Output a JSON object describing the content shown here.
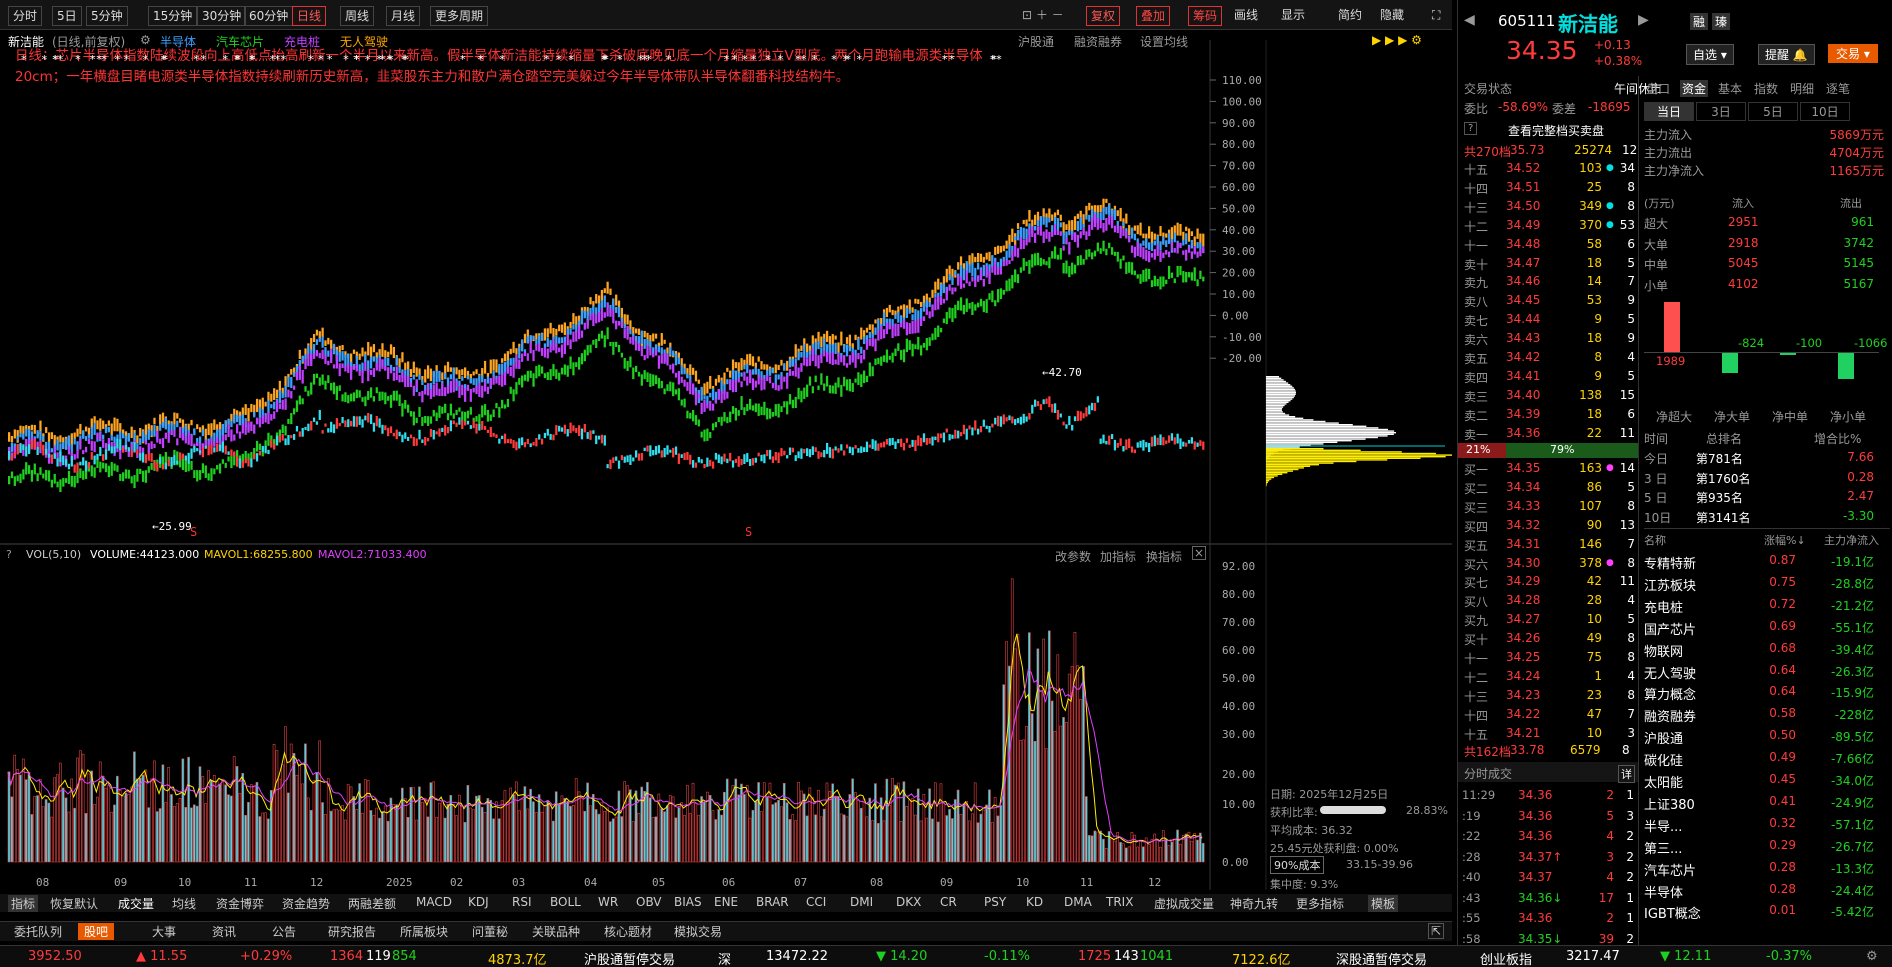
{
  "toolbar": {
    "items": [
      "分时",
      "5日",
      "5分钟",
      "15分钟",
      "30分钟",
      "60分钟",
      "日线",
      "周线",
      "月线",
      "更多周期"
    ],
    "active": "日线",
    "right": [
      "复权",
      "叠加",
      "筹码",
      "画线",
      "显示",
      "简约",
      "隐藏"
    ]
  },
  "overlay": {
    "name": "新洁能",
    "info": "(日线,前复权)",
    "items": [
      "半导体",
      "汽车芯片",
      "充电桩",
      "无人驾驶"
    ],
    "right": [
      "沪股通",
      "融资融券",
      "设置均线"
    ]
  },
  "annotation": "日线：芯片半导体指数陆续波段向上高低点抬高刷新一个半月以来新高。假半导体新洁能持续缩量下杀破底晚见底一个月缩量独立V型底。两个月跑输电源类半导体20cm；一年横盘目睹电源类半导体指数持续刷新历史新高，韭菜股东主力和散户满仓踏空完美躲过今年半导体带队半导体翻番科技结构牛。",
  "price_axis": [
    "110.00",
    "100.00",
    "90.00",
    "80.00",
    "70.00",
    "60.00",
    "50.00",
    "40.00",
    "30.00",
    "20.00",
    "10.00",
    "0.00",
    "-10.00",
    "-20.00"
  ],
  "price_labels": {
    "high": "42.70",
    "low": "25.99"
  },
  "vol_header": {
    "name": "VOL(5,10)",
    "volume": "VOLUME:44123.000",
    "mavol1": "MAVOL1:68255.800",
    "mavol2": "MAVOL2:71033.400",
    "right": [
      "改参数",
      "加指标",
      "换指标"
    ]
  },
  "vol_axis": [
    "92.00",
    "80.00",
    "70.00",
    "60.00",
    "50.00",
    "40.00",
    "30.00",
    "20.00",
    "10.00",
    "0.00"
  ],
  "x_axis": [
    "08",
    "09",
    "10",
    "11",
    "12",
    "2025",
    "02",
    "03",
    "04",
    "05",
    "06",
    "07",
    "08",
    "09",
    "10",
    "11",
    "12"
  ],
  "chip": {
    "date": "日期: 2025年12月25日",
    "profit_label": "获利比率:",
    "profit": "28.83%",
    "avg": "平均成本: 36.32",
    "loss": "25.45元处获利盘: 0.00%",
    "range_sel": "90%成本",
    "range": "33.15-39.96",
    "conc": "集中度: 9.3%"
  },
  "indicator_tabs": [
    "指标",
    "恢复默认",
    "成交量",
    "均线",
    "资金博弈",
    "资金趋势",
    "两融差额",
    "MACD",
    "KDJ",
    "RSI",
    "BOLL",
    "WR",
    "OBV",
    "BIAS",
    "ENE",
    "BRAR",
    "CCI",
    "DMI",
    "DKX",
    "CR",
    "PSY",
    "KD",
    "DMA",
    "TRIX",
    "虚拟成交量",
    "神奇九转",
    "更多指标",
    "模板"
  ],
  "bottom_tabs": [
    "委托队列",
    "股吧",
    "大事",
    "资讯",
    "公告",
    "研究报告",
    "所属板块",
    "问董秘",
    "关联品种",
    "核心题材",
    "模拟交易"
  ],
  "stock": {
    "code": "605111",
    "name": "新洁能",
    "price": "34.35",
    "change": "+0.13",
    "pct": "+0.38%",
    "tag1": "融",
    "tag2": "瑧",
    "btn1": "自选",
    "btn2": "提醒",
    "btn3": "交易"
  },
  "trade": {
    "status_label": "交易状态",
    "status": "午间休市",
    "wb_label": "委比",
    "wb": "-58.69%",
    "wc_label": "委差",
    "wc": "-18695",
    "full_btn": "查看完整档买卖盘",
    "total_label": "共270档",
    "total_price": "35.73",
    "total_vol": "25274",
    "total_n": "12",
    "buy_total_label": "共162档",
    "buy_total_price": "33.78",
    "buy_total_vol": "6579",
    "buy_total_n": "8",
    "ratio_sell": "21%",
    "ratio_buy": "79%"
  },
  "sell": [
    [
      "十五",
      "34.52",
      "103",
      "34"
    ],
    [
      "十四",
      "34.51",
      "25",
      "8"
    ],
    [
      "十三",
      "34.50",
      "349",
      "8"
    ],
    [
      "十二",
      "34.49",
      "370",
      "53"
    ],
    [
      "十一",
      "34.48",
      "58",
      "6"
    ],
    [
      "卖十",
      "34.47",
      "18",
      "5"
    ],
    [
      "卖九",
      "34.46",
      "14",
      "7"
    ],
    [
      "卖八",
      "34.45",
      "53",
      "9"
    ],
    [
      "卖七",
      "34.44",
      "9",
      "5"
    ],
    [
      "卖六",
      "34.43",
      "18",
      "9"
    ],
    [
      "卖五",
      "34.42",
      "8",
      "4"
    ],
    [
      "卖四",
      "34.41",
      "9",
      "5"
    ],
    [
      "卖三",
      "34.40",
      "138",
      "15"
    ],
    [
      "卖二",
      "34.39",
      "18",
      "6"
    ],
    [
      "卖一",
      "34.36",
      "22",
      "11"
    ]
  ],
  "buy": [
    [
      "买一",
      "34.35",
      "163",
      "14"
    ],
    [
      "买二",
      "34.34",
      "86",
      "5"
    ],
    [
      "买三",
      "34.33",
      "107",
      "8"
    ],
    [
      "买四",
      "34.32",
      "90",
      "13"
    ],
    [
      "买五",
      "34.31",
      "146",
      "7"
    ],
    [
      "买六",
      "34.30",
      "378",
      "8"
    ],
    [
      "买七",
      "34.29",
      "42",
      "11"
    ],
    [
      "买八",
      "34.28",
      "28",
      "4"
    ],
    [
      "买九",
      "34.27",
      "10",
      "5"
    ],
    [
      "买十",
      "34.26",
      "49",
      "8"
    ],
    [
      "十一",
      "34.25",
      "75",
      "8"
    ],
    [
      "十二",
      "34.24",
      "1",
      "4"
    ],
    [
      "十三",
      "34.23",
      "23",
      "8"
    ],
    [
      "十四",
      "34.22",
      "47",
      "7"
    ],
    [
      "十五",
      "34.21",
      "10",
      "3"
    ]
  ],
  "tick_title": "分时成交",
  "tick_btn": "详",
  "ticks": [
    [
      "11:29",
      "34.36",
      "2",
      "1"
    ],
    [
      ":19",
      "34.36",
      "5",
      "3"
    ],
    [
      ":22",
      "34.36",
      "4",
      "2"
    ],
    [
      ":28",
      "34.37↑",
      "3",
      "2"
    ],
    [
      ":40",
      "34.37",
      "4",
      "2"
    ],
    [
      ":43",
      "34.36↓",
      "17",
      "1"
    ],
    [
      ":55",
      "34.36",
      "2",
      "1"
    ],
    [
      ":58",
      "34.35↓",
      "39",
      "2"
    ]
  ],
  "fund_tabs": [
    "盘口",
    "资金",
    "基本",
    "指数",
    "明细",
    "逐笔"
  ],
  "period_tabs": [
    "当日",
    "3日",
    "5日",
    "10日"
  ],
  "fund": [
    [
      "主力流入",
      "5869万元"
    ],
    [
      "主力流出",
      "4704万元"
    ],
    [
      "主力净流入",
      "1165万元"
    ]
  ],
  "flow_head": [
    "(万元)",
    "流入",
    "流出"
  ],
  "flow": [
    [
      "超大",
      "2951",
      "961"
    ],
    [
      "大单",
      "2918",
      "3742"
    ],
    [
      "中单",
      "5045",
      "5145"
    ],
    [
      "小单",
      "4102",
      "5167"
    ]
  ],
  "net_bars": {
    "values": [
      "1989",
      "-824",
      "-100",
      "-1066"
    ],
    "labels": [
      "净超大",
      "净大单",
      "净中单",
      "净小单"
    ]
  },
  "rank_head": [
    "时间",
    "总排名",
    "增合比%"
  ],
  "rank": [
    [
      "今日",
      "第781名",
      "7.66"
    ],
    [
      "3 日",
      "第1760名",
      "0.28"
    ],
    [
      "5 日",
      "第935名",
      "2.47"
    ],
    [
      "10日",
      "第3141名",
      "-3.30"
    ]
  ],
  "sector_head": [
    "名称",
    "涨幅%↓",
    "主力净流入"
  ],
  "sectors": [
    [
      "专精特新",
      "0.87",
      "-19.1亿"
    ],
    [
      "江苏板块",
      "0.75",
      "-28.8亿"
    ],
    [
      "充电桩",
      "0.72",
      "-21.2亿"
    ],
    [
      "国产芯片",
      "0.69",
      "-55.1亿"
    ],
    [
      "物联网",
      "0.68",
      "-39.4亿"
    ],
    [
      "无人驾驶",
      "0.64",
      "-26.3亿"
    ],
    [
      "算力概念",
      "0.64",
      "-15.9亿"
    ],
    [
      "融资融券",
      "0.58",
      "-228亿"
    ],
    [
      "沪股通",
      "0.50",
      "-89.5亿"
    ],
    [
      "碳化硅",
      "0.49",
      "-7.66亿"
    ],
    [
      "太阳能",
      "0.45",
      "-34.0亿"
    ],
    [
      "上证380",
      "0.41",
      "-24.9亿"
    ],
    [
      "半导...",
      "0.32",
      "-57.1亿"
    ],
    [
      "第三...",
      "0.29",
      "-26.7亿"
    ],
    [
      "汽车芯片",
      "0.28",
      "-13.3亿"
    ],
    [
      "半导体",
      "0.28",
      "-24.4亿"
    ],
    [
      "IGBT概念",
      "0.01",
      "-5.42亿"
    ]
  ],
  "status": {
    "sh": "3952.50",
    "sh_chg": "▲ 11.55",
    "sh_pct": "+0.29%",
    "sh_up": "1364",
    "sh_flat": "119",
    "sh_down": "854",
    "sh_amt": "4873.7亿",
    "hgt": "沪股通暂停交易",
    "sz_label": "深",
    "sz": "13472.22",
    "sz_chg": "▼ 14.20",
    "sz_pct": "-0.11%",
    "sz_up": "1725",
    "sz_flat": "143",
    "sz_down": "1041",
    "sz_amt": "7122.6亿",
    "sgt": "深股通暂停交易",
    "cy_label": "创业板指",
    "cy": "3217.47",
    "cy_chg": "▼ 12.11",
    "cy_pct": "-0.37%"
  }
}
